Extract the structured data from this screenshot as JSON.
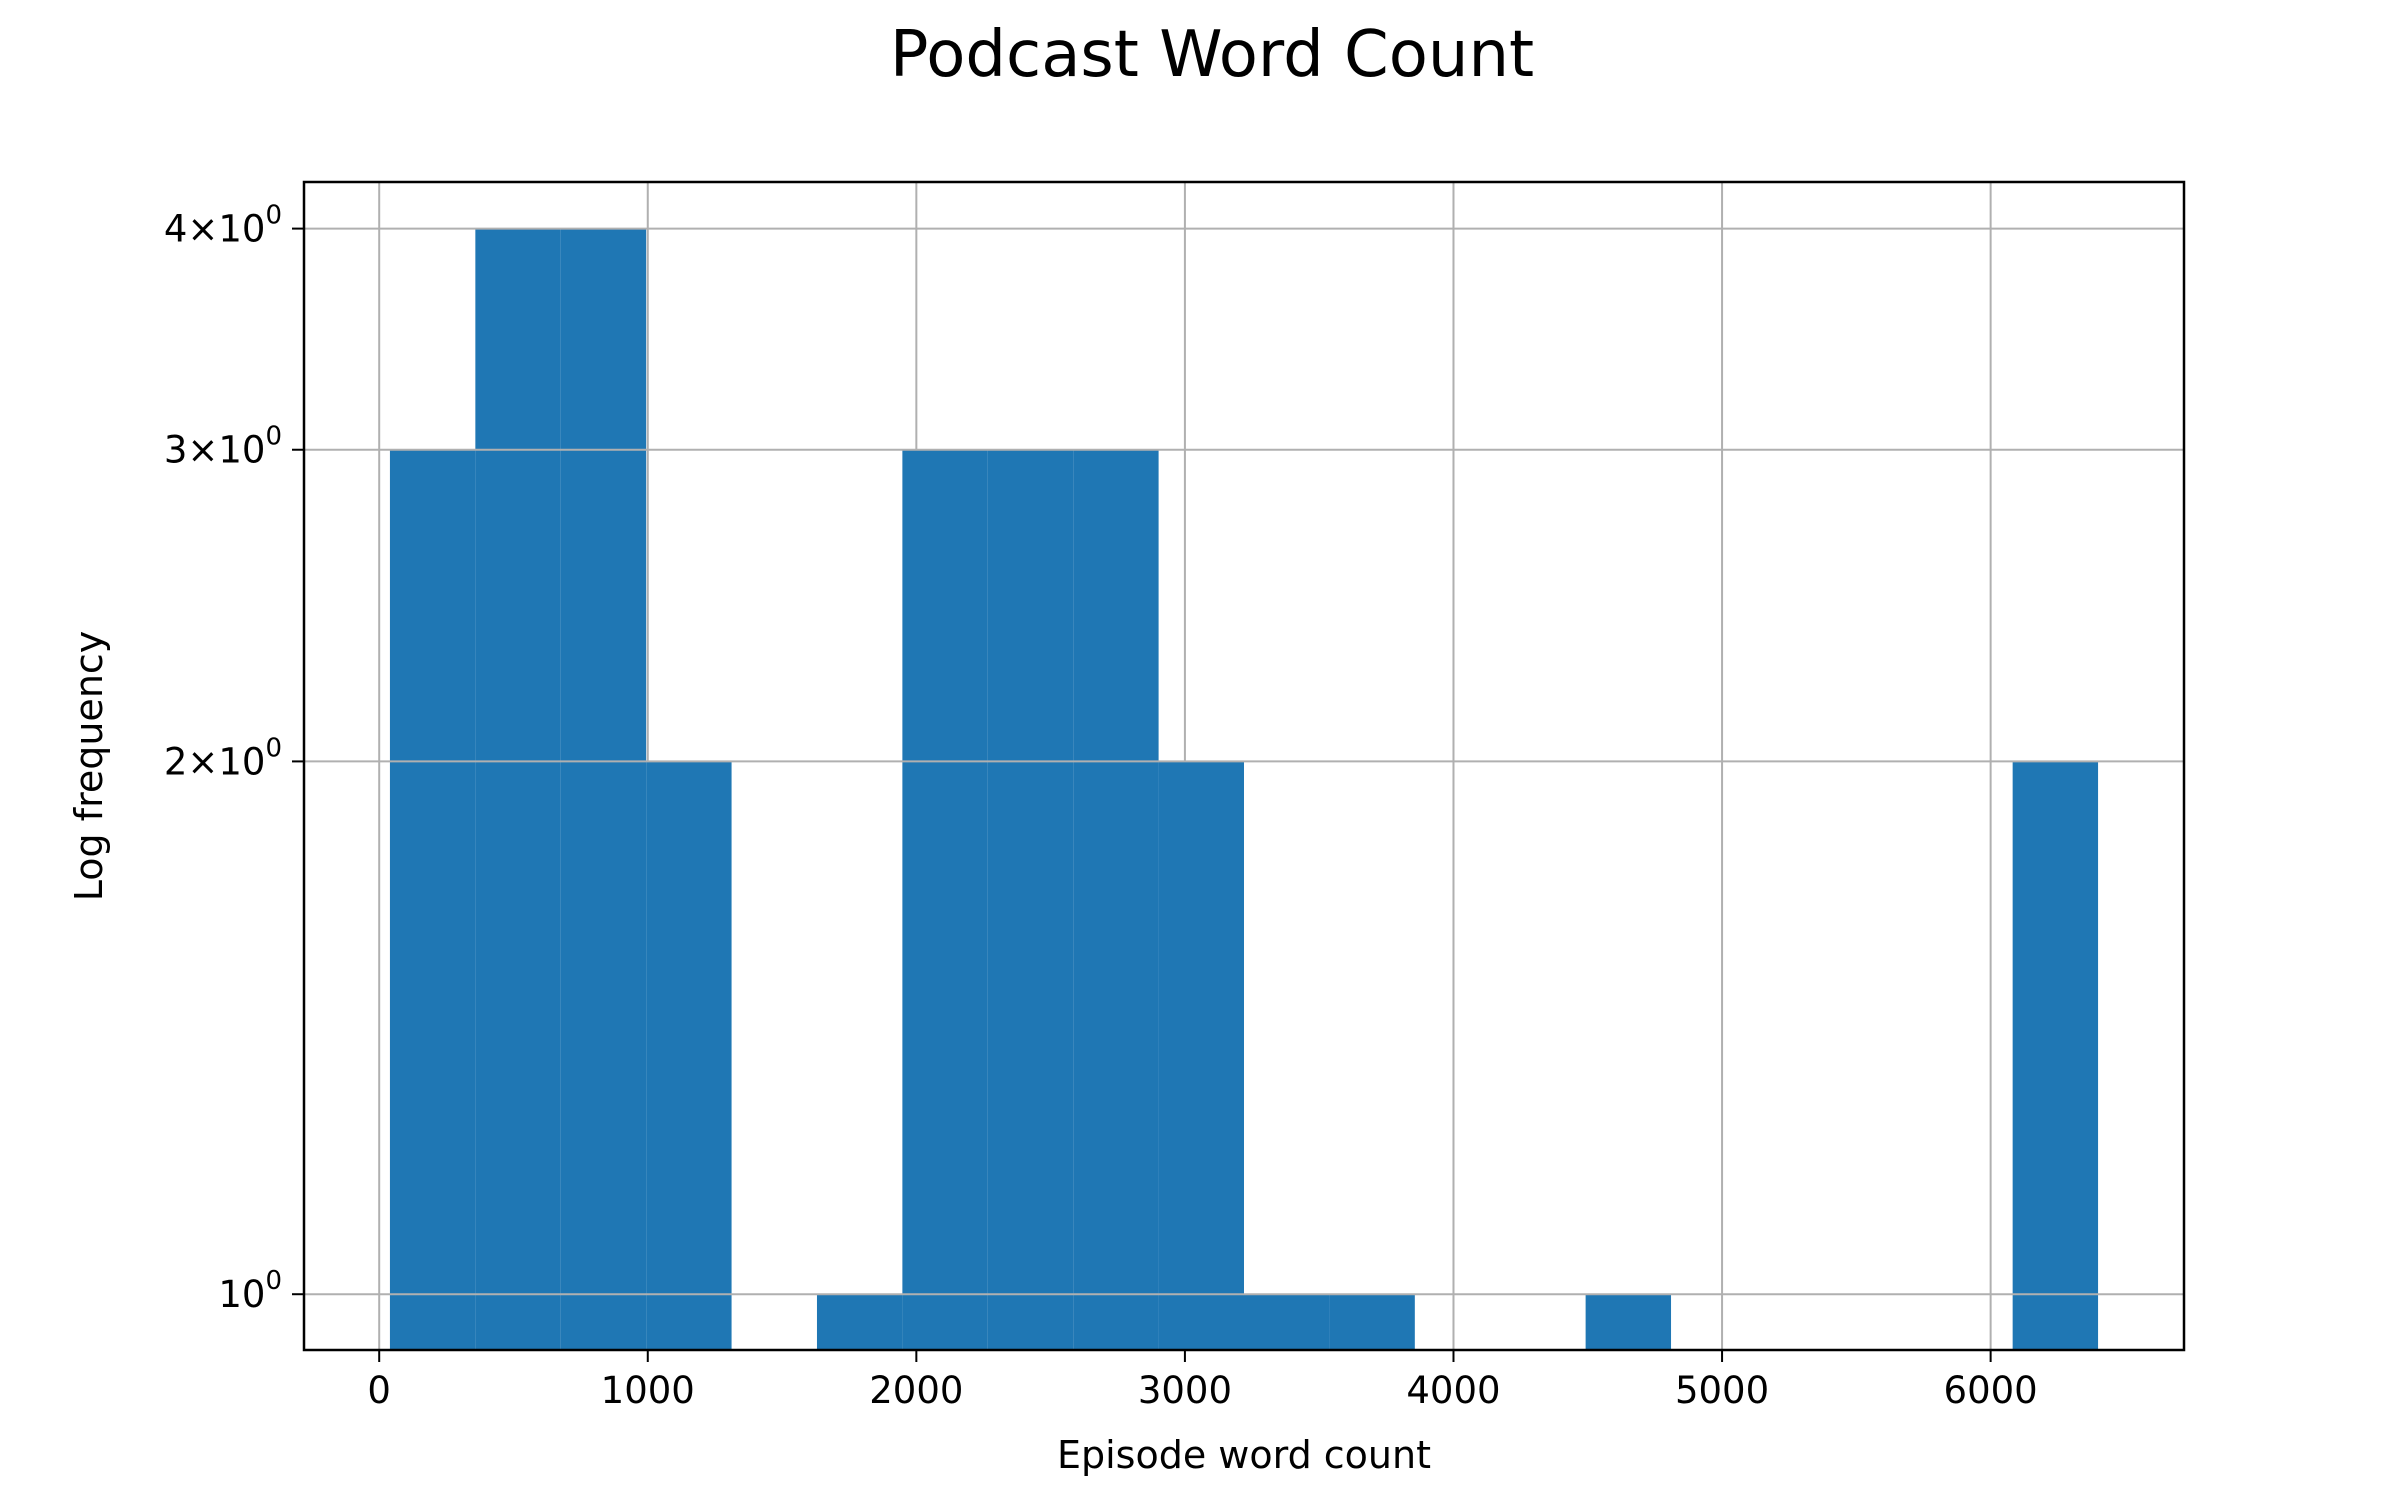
{
  "chart_data": {
    "type": "bar",
    "subtype": "histogram",
    "title": "Podcast Word Count",
    "xlabel": "Episode word count",
    "ylabel": "Log frequency",
    "yscale": "log",
    "xlim": [
      -280,
      6720
    ],
    "ylim": [
      0.93,
      4.25
    ],
    "grid": true,
    "bar_color": "#1f77b4",
    "x_ticks": [
      {
        "value": 0,
        "label": "0"
      },
      {
        "value": 1000,
        "label": "1000"
      },
      {
        "value": 2000,
        "label": "2000"
      },
      {
        "value": 3000,
        "label": "3000"
      },
      {
        "value": 4000,
        "label": "4000"
      },
      {
        "value": 5000,
        "label": "5000"
      },
      {
        "value": 6000,
        "label": "6000"
      }
    ],
    "y_ticks": [
      {
        "value": 1,
        "mantissa": "",
        "base": "10",
        "exp": "0"
      },
      {
        "value": 2,
        "mantissa": "2",
        "base": "10",
        "exp": "0"
      },
      {
        "value": 3,
        "mantissa": "3",
        "base": "10",
        "exp": "0"
      },
      {
        "value": 4,
        "mantissa": "4",
        "base": "10",
        "exp": "0"
      }
    ],
    "bins": [
      {
        "x0": 40,
        "x1": 358,
        "count": 3
      },
      {
        "x0": 358,
        "x1": 676,
        "count": 4
      },
      {
        "x0": 676,
        "x1": 994,
        "count": 4
      },
      {
        "x0": 994,
        "x1": 1312,
        "count": 2
      },
      {
        "x0": 1312,
        "x1": 1630,
        "count": 0
      },
      {
        "x0": 1630,
        "x1": 1948,
        "count": 1
      },
      {
        "x0": 1948,
        "x1": 2266,
        "count": 3
      },
      {
        "x0": 2266,
        "x1": 2584,
        "count": 3
      },
      {
        "x0": 2584,
        "x1": 2902,
        "count": 3
      },
      {
        "x0": 2902,
        "x1": 3220,
        "count": 2
      },
      {
        "x0": 3220,
        "x1": 3538,
        "count": 1
      },
      {
        "x0": 3538,
        "x1": 3856,
        "count": 1
      },
      {
        "x0": 3856,
        "x1": 4174,
        "count": 0
      },
      {
        "x0": 4174,
        "x1": 4492,
        "count": 0
      },
      {
        "x0": 4492,
        "x1": 4810,
        "count": 1
      },
      {
        "x0": 4810,
        "x1": 5128,
        "count": 0
      },
      {
        "x0": 5128,
        "x1": 5446,
        "count": 0
      },
      {
        "x0": 5446,
        "x1": 5764,
        "count": 0
      },
      {
        "x0": 5764,
        "x1": 6082,
        "count": 0
      },
      {
        "x0": 6082,
        "x1": 6400,
        "count": 2
      }
    ]
  }
}
